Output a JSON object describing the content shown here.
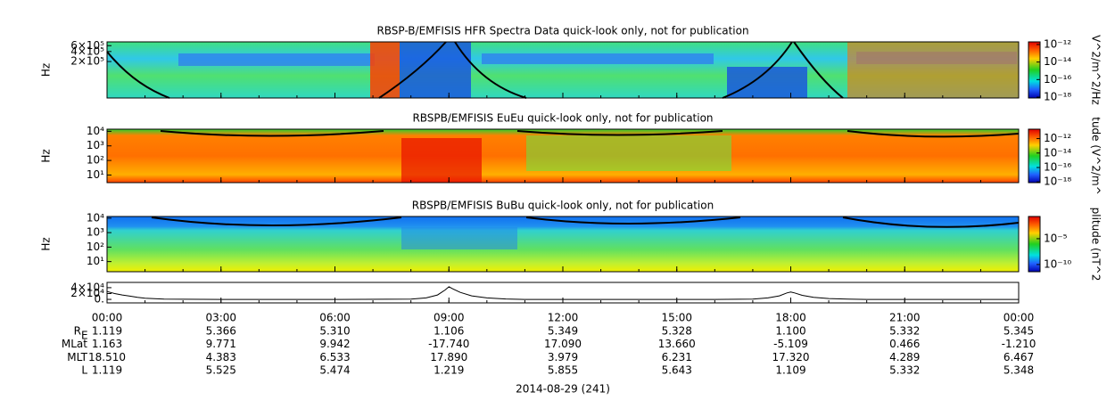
{
  "chart_data": [
    {
      "type": "spectrogram",
      "title": "RBSP-B/EMFISIS  HFR Spectra Data quick-look only, not for publication",
      "ylabel": "Hz",
      "ylog": true,
      "ylim": [
        16000,
        780000
      ],
      "yticks": [
        {
          "value": 600000,
          "label": "6×10⁵"
        },
        {
          "value": 400000,
          "label": "4×10⁵"
        },
        {
          "value": 200000,
          "label": "2×10⁵"
        }
      ],
      "colorbar": {
        "label": "V^2/m^2/Hz",
        "zlog": true,
        "zlim": [
          8e-19,
          2e-12
        ],
        "zticks": [
          {
            "value": 1e-12,
            "label": "10⁻¹²"
          },
          {
            "value": 1e-14,
            "label": "10⁻¹⁴"
          },
          {
            "value": 1e-16,
            "label": "10⁻¹⁶"
          },
          {
            "value": 1e-18,
            "label": "10⁻¹⁸"
          }
        ]
      }
    },
    {
      "type": "spectrogram",
      "title": "RBSPB/EMFISIS  EuEu quick-look only, not for publication",
      "ylabel": "Hz",
      "ylog": true,
      "ylim": [
        3,
        14000
      ],
      "yticks": [
        {
          "value": 10000,
          "label": "10⁴"
        },
        {
          "value": 1000,
          "label": "10³"
        },
        {
          "value": 100,
          "label": "10²"
        },
        {
          "value": 10,
          "label": "10¹"
        }
      ],
      "colorbar": {
        "label": "tude (V^2/m^",
        "zlog": true,
        "zlim": [
          8e-19,
          2e-11
        ],
        "zticks": [
          {
            "value": 1e-12,
            "label": "10⁻¹²"
          },
          {
            "value": 1e-14,
            "label": "10⁻¹⁴"
          },
          {
            "value": 1e-16,
            "label": "10⁻¹⁶"
          },
          {
            "value": 1e-18,
            "label": "10⁻¹⁸"
          }
        ]
      }
    },
    {
      "type": "spectrogram",
      "title": "RBSPB/EMFISIS  BuBu quick-look only, not for publication",
      "ylabel": "Hz",
      "ylog": true,
      "ylim": [
        2,
        13000
      ],
      "yticks": [
        {
          "value": 10000,
          "label": "10⁴"
        },
        {
          "value": 1000,
          "label": "10³"
        },
        {
          "value": 100,
          "label": "10²"
        },
        {
          "value": 10,
          "label": "10¹"
        }
      ],
      "colorbar": {
        "label": "plitude (nT^2",
        "zlog": true,
        "zlim": [
          4e-12,
          0.2
        ],
        "zticks": [
          {
            "value": 1e-05,
            "label": "10⁻⁵"
          },
          {
            "value": 1e-10,
            "label": "10⁻¹⁰"
          }
        ]
      }
    },
    {
      "type": "line",
      "color": "#000000",
      "ylim": [
        -12000,
        58000
      ],
      "yticks": [
        {
          "value": 40000,
          "label": "4×10⁴"
        },
        {
          "value": 20000,
          "label": "2×10⁴"
        },
        {
          "value": 0,
          "label": "0."
        }
      ],
      "x": [
        0,
        0.2,
        0.4,
        0.6,
        0.8,
        1.0,
        1.5,
        3,
        6,
        8,
        8.4,
        8.7,
        8.9,
        9.0,
        9.1,
        9.3,
        9.6,
        10,
        10.5,
        11,
        13,
        16,
        17,
        17.4,
        17.7,
        17.9,
        18.0,
        18.1,
        18.3,
        18.6,
        19,
        19.5,
        20,
        23,
        24
      ],
      "values": [
        27000,
        20000,
        15000,
        11000,
        7000,
        4000,
        1000,
        0,
        0,
        1000,
        5000,
        15000,
        32000,
        43000,
        36000,
        24000,
        12000,
        5000,
        1500,
        0,
        0,
        0,
        1000,
        5000,
        12000,
        22000,
        25000,
        22000,
        14000,
        7000,
        3000,
        800,
        0,
        0,
        0
      ]
    }
  ],
  "xaxis": {
    "xlim": [
      0,
      24
    ],
    "xticks": [
      {
        "value": 0,
        "label": "00:00"
      },
      {
        "value": 3,
        "label": "03:00"
      },
      {
        "value": 6,
        "label": "06:00"
      },
      {
        "value": 9,
        "label": "09:00"
      },
      {
        "value": 12,
        "label": "12:00"
      },
      {
        "value": 15,
        "label": "15:00"
      },
      {
        "value": 18,
        "label": "18:00"
      },
      {
        "value": 21,
        "label": "21:00"
      },
      {
        "value": 24,
        "label": "00:00"
      }
    ]
  },
  "ephemeris": {
    "rows": [
      {
        "label": "R",
        "sub": "E",
        "values": [
          "1.119",
          "5.366",
          "5.310",
          "1.106",
          "5.349",
          "5.328",
          "1.100",
          "5.332",
          "5.345"
        ]
      },
      {
        "label": "MLat",
        "values": [
          "1.163",
          "9.771",
          "9.942",
          "-17.740",
          "17.090",
          "13.660",
          "-5.109",
          "0.466",
          "-1.210"
        ]
      },
      {
        "label": "MLT",
        "values": [
          "18.510",
          "4.383",
          "6.533",
          "17.890",
          "3.979",
          "6.231",
          "17.320",
          "4.289",
          "6.467"
        ]
      },
      {
        "label": "L",
        "values": [
          "1.119",
          "5.525",
          "5.474",
          "1.219",
          "5.855",
          "5.643",
          "1.109",
          "5.332",
          "5.348"
        ]
      }
    ]
  },
  "date": "2014-08-29 (241)"
}
